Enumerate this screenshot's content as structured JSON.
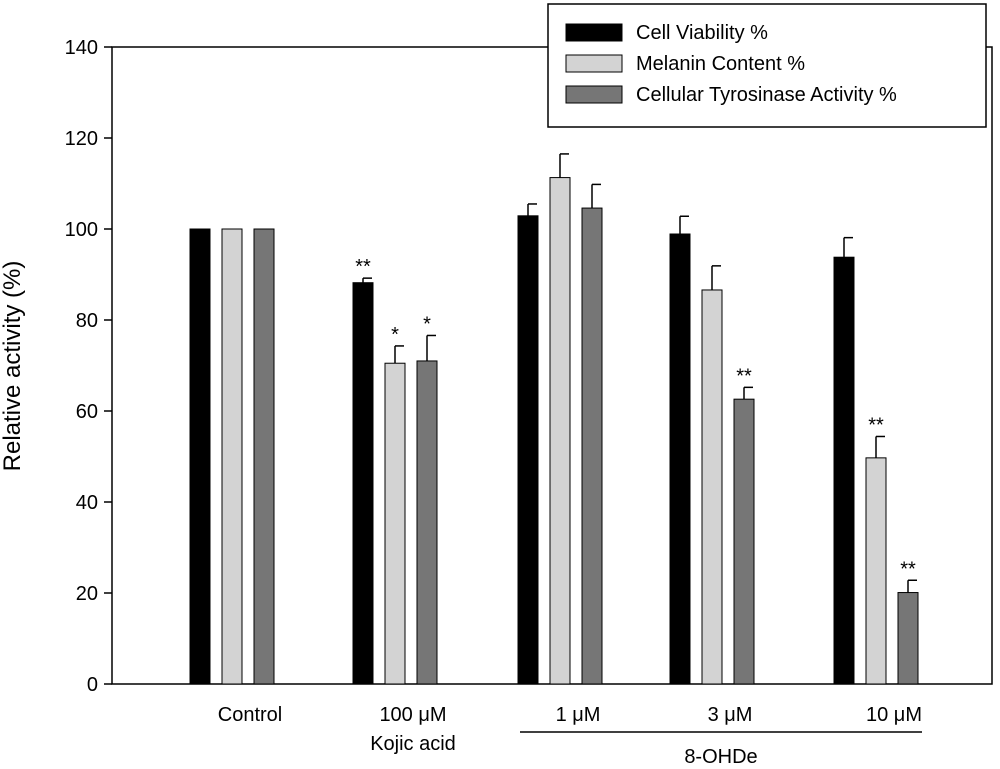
{
  "chart_data": {
    "type": "bar",
    "title": "",
    "xlabel": "",
    "ylabel": "Relative activity (%)",
    "ylim": [
      0,
      140
    ],
    "yticks": [
      0,
      20,
      40,
      60,
      80,
      100,
      120,
      140
    ],
    "grid": false,
    "legend_position": "top-right",
    "categories": [
      {
        "label": "Control",
        "sublabel": ""
      },
      {
        "label": "100 μM",
        "sublabel": "Kojic acid"
      },
      {
        "label": "1 μM",
        "sublabel": ""
      },
      {
        "label": "3 μM",
        "sublabel": ""
      },
      {
        "label": "10 μM",
        "sublabel": ""
      }
    ],
    "group_label": {
      "text": "8-OHDe",
      "spans": [
        2,
        4
      ]
    },
    "series": [
      {
        "name": "Cell Viability %",
        "color": "#000000",
        "values": [
          100,
          88.2,
          102.9,
          98.9,
          93.8
        ],
        "errors": [
          0,
          1.0,
          2.6,
          3.9,
          4.3
        ],
        "significance": [
          "",
          "**",
          "",
          "",
          ""
        ]
      },
      {
        "name": "Melanin Content %",
        "color": "#d3d3d3",
        "values": [
          100,
          70.5,
          111.3,
          86.6,
          49.7
        ],
        "errors": [
          0,
          3.8,
          5.2,
          5.3,
          4.7
        ],
        "significance": [
          "",
          "*",
          "",
          "",
          "**"
        ]
      },
      {
        "name": "Cellular Tyrosinase Activity %",
        "color": "#767676",
        "values": [
          100,
          71.0,
          104.6,
          62.6,
          20.1
        ],
        "errors": [
          0,
          5.6,
          5.2,
          2.6,
          2.7
        ],
        "significance": [
          "",
          "*",
          "",
          "**",
          "**"
        ]
      }
    ]
  }
}
